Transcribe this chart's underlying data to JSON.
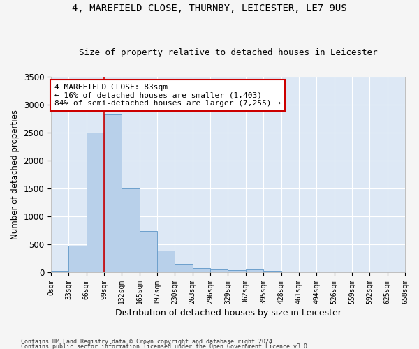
{
  "title1": "4, MAREFIELD CLOSE, THURNBY, LEICESTER, LE7 9US",
  "title2": "Size of property relative to detached houses in Leicester",
  "xlabel": "Distribution of detached houses by size in Leicester",
  "ylabel": "Number of detached properties",
  "bar_values": [
    25,
    475,
    2500,
    2825,
    1500,
    740,
    385,
    145,
    75,
    50,
    35,
    50,
    25,
    0,
    0,
    0,
    0,
    0,
    0,
    0
  ],
  "x_labels": [
    "0sqm",
    "33sqm",
    "66sqm",
    "99sqm",
    "132sqm",
    "165sqm",
    "197sqm",
    "230sqm",
    "263sqm",
    "296sqm",
    "329sqm",
    "362sqm",
    "395sqm",
    "428sqm",
    "461sqm",
    "494sqm",
    "526sqm",
    "559sqm",
    "592sqm",
    "625sqm",
    "658sqm"
  ],
  "bar_color": "#b8d0ea",
  "bar_edge_color": "#6da0cc",
  "background_color": "#dde8f5",
  "grid_color": "#ffffff",
  "property_line_x": 3,
  "annotation_text": "4 MAREFIELD CLOSE: 83sqm\n← 16% of detached houses are smaller (1,403)\n84% of semi-detached houses are larger (7,255) →",
  "annotation_box_color": "#ffffff",
  "annotation_border_color": "#cc0000",
  "ylim": [
    0,
    3500
  ],
  "yticks": [
    0,
    500,
    1000,
    1500,
    2000,
    2500,
    3000,
    3500
  ],
  "fig_bg": "#f5f5f5",
  "footer1": "Contains HM Land Registry data © Crown copyright and database right 2024.",
  "footer2": "Contains public sector information licensed under the Open Government Licence v3.0."
}
